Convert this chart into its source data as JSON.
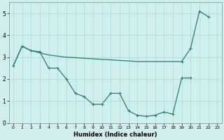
{
  "xlabel": "Humidex (Indice chaleur)",
  "x_values": [
    0,
    1,
    2,
    3,
    4,
    5,
    6,
    7,
    8,
    9,
    10,
    11,
    12,
    13,
    14,
    15,
    16,
    17,
    18,
    19,
    20,
    21,
    22,
    23
  ],
  "line1": [
    2.6,
    3.5,
    3.3,
    3.25,
    2.5,
    2.5,
    2.0,
    1.35,
    1.2,
    0.85,
    0.85,
    1.35,
    1.35,
    0.55,
    0.35,
    0.3,
    0.35,
    0.5,
    0.4,
    2.05,
    2.05,
    null,
    null,
    null
  ],
  "line2": [
    2.6,
    3.5,
    3.3,
    3.2,
    3.1,
    3.05,
    3.0,
    2.98,
    2.95,
    2.93,
    2.9,
    2.88,
    2.85,
    2.83,
    2.8,
    2.8,
    2.8,
    2.8,
    2.8,
    2.8,
    null,
    null,
    null,
    null
  ],
  "line3": [
    null,
    null,
    null,
    null,
    null,
    null,
    null,
    null,
    null,
    null,
    null,
    null,
    null,
    null,
    null,
    null,
    null,
    null,
    null,
    2.8,
    3.4,
    5.1,
    4.85,
    null
  ],
  "line_color": "#2a7a7a",
  "bg_color": "#d0eeee",
  "grid_color": "#a8d8d8",
  "ylim": [
    0,
    5.5
  ],
  "xlim": [
    -0.5,
    23.5
  ]
}
